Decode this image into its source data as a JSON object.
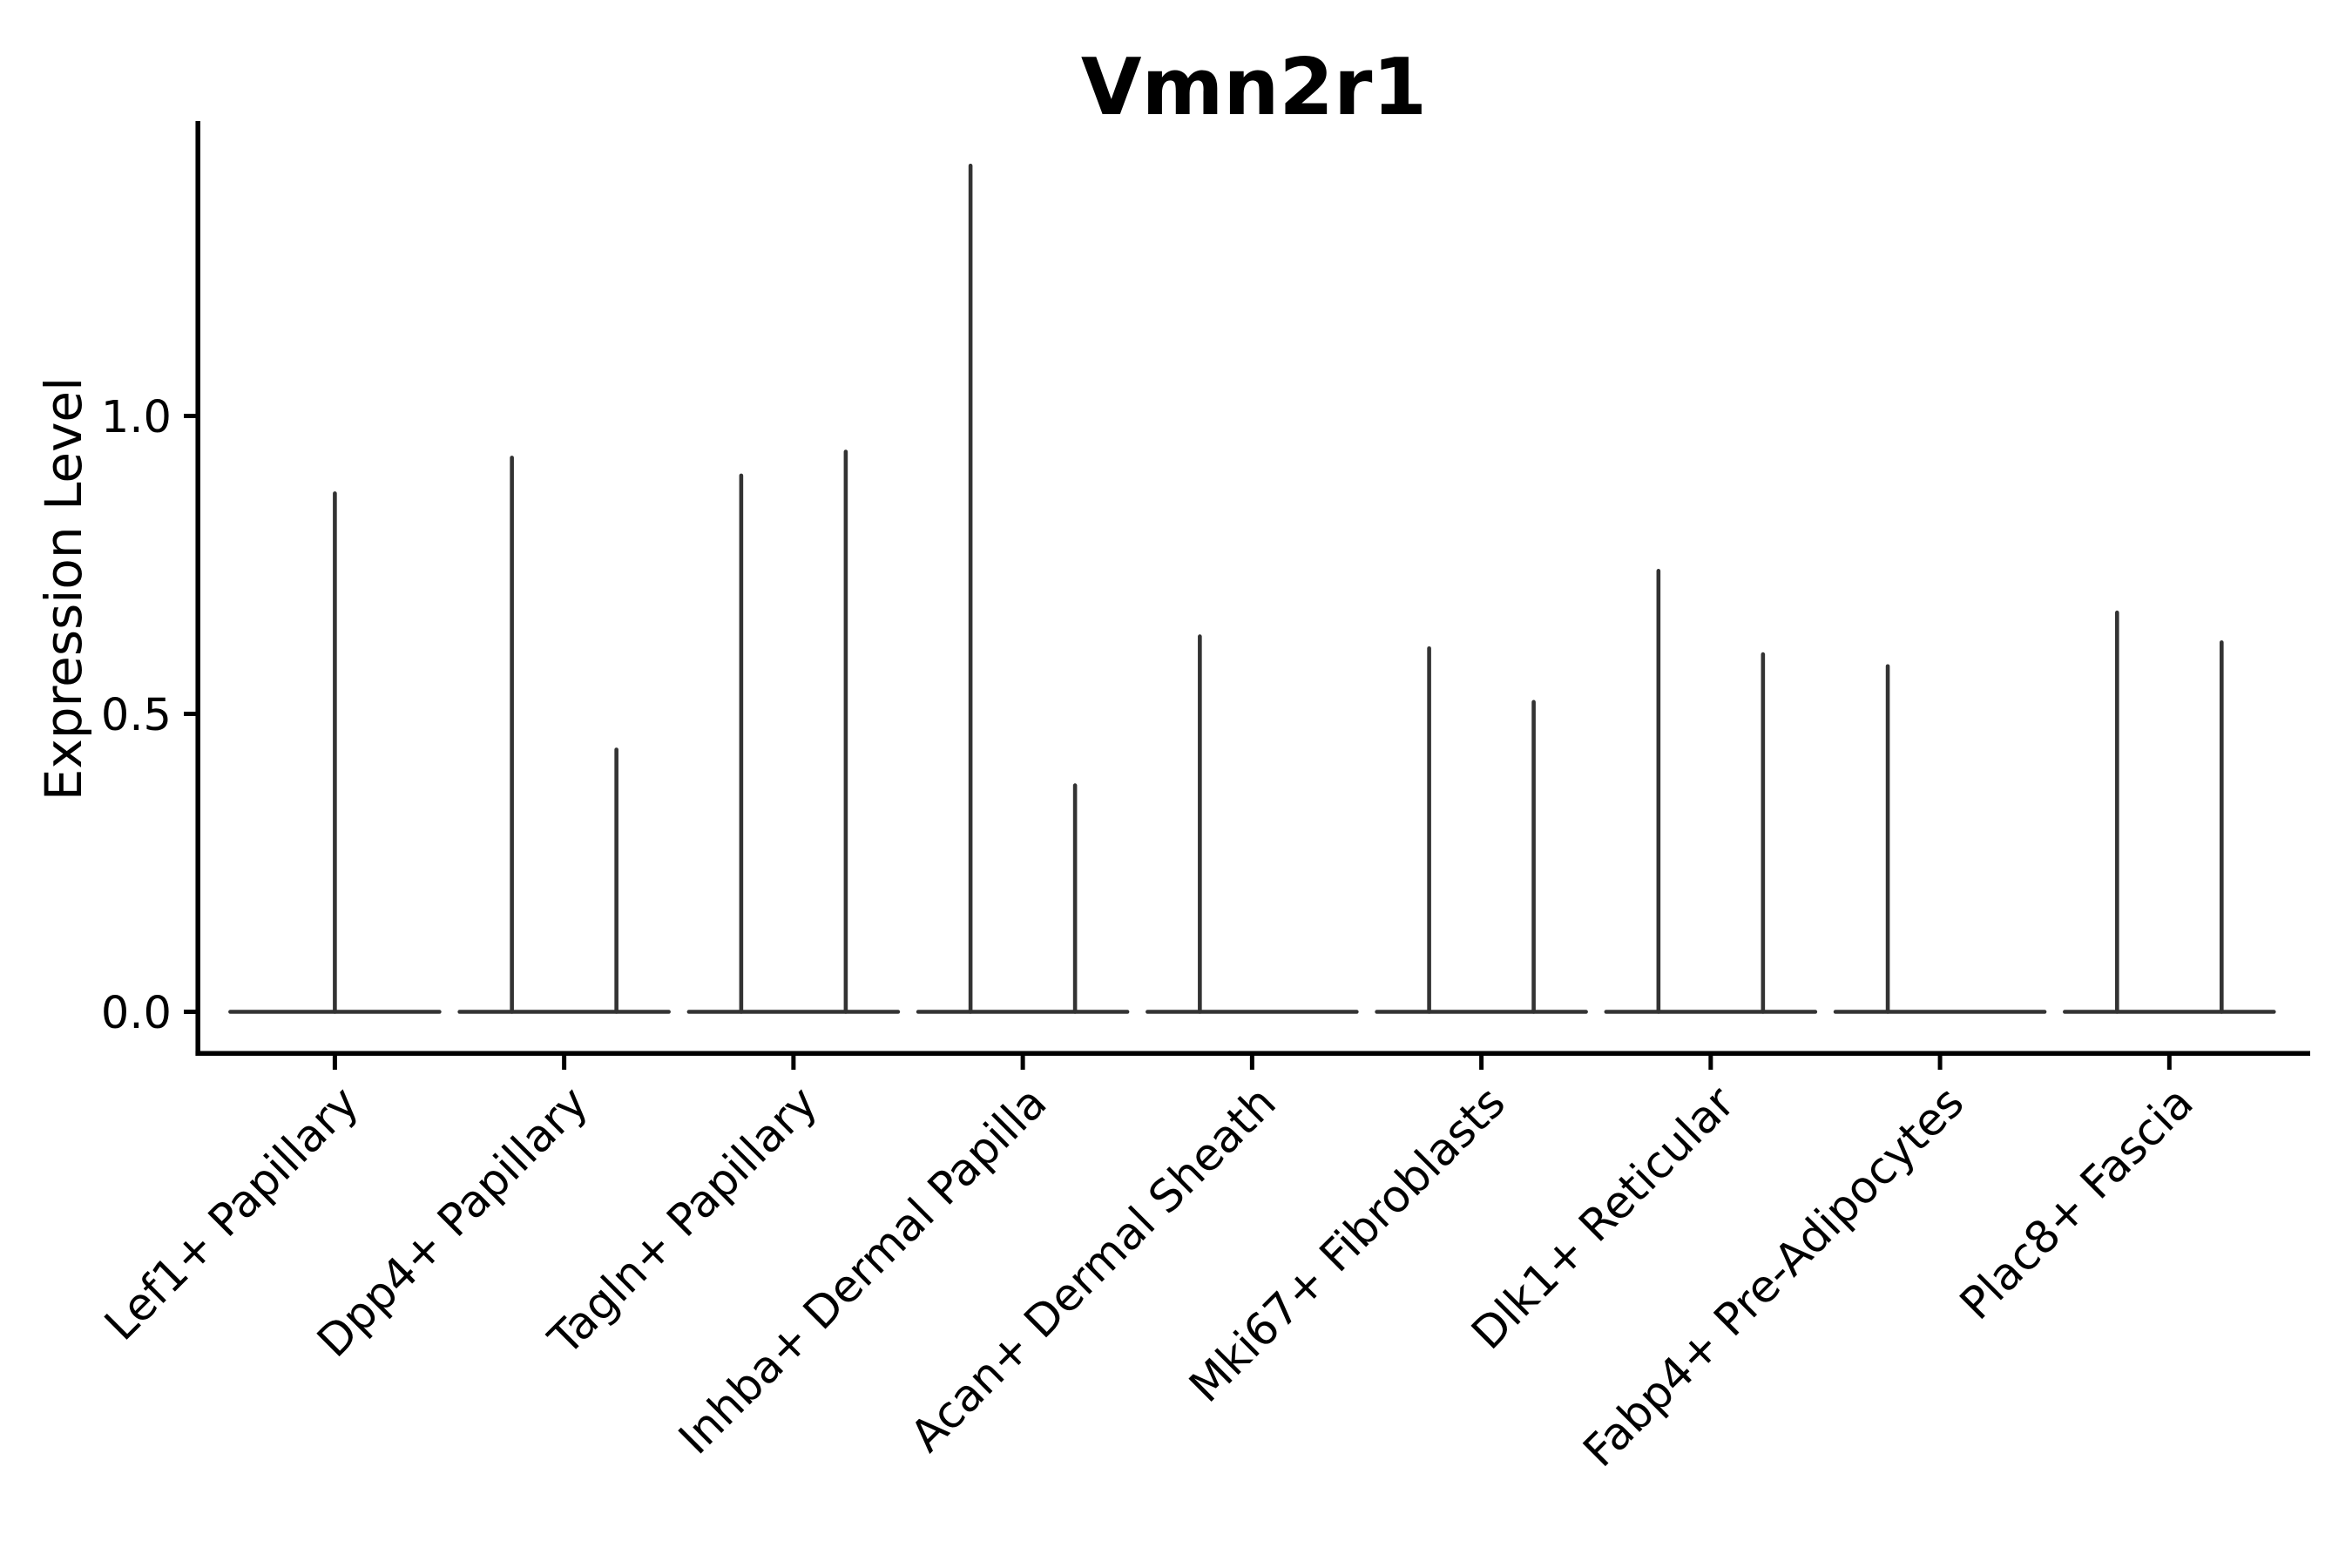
{
  "figure": {
    "background": "#ffffff"
  },
  "chart_data": {
    "type": "violin",
    "title": "Vmn2r1",
    "xlabel": "",
    "ylabel": "Expression Level",
    "grid": false,
    "legend": false,
    "ylim": [
      -0.07,
      1.5
    ],
    "yticks": [
      0.0,
      0.5,
      1.0
    ],
    "ytick_labels": [
      "0.0",
      "0.5",
      "1.0"
    ],
    "x_tick_rotation_deg": 45,
    "categories": [
      "Lef1+ Papillary",
      "Dpp4+ Papillary",
      "Tagln+ Papillary",
      "Inhba+ Dermal Papilla",
      "Acan+ Dermal Sheath",
      "Mki67+ Fibroblasts",
      "Dlk1+ Reticular",
      "Fabp4+ Pre-Adipocytes",
      "Plac8+ Fascia"
    ],
    "groups": [
      {
        "label": "Lef1+ Papillary",
        "baseline_value": 0.0,
        "spikes": [
          {
            "pos": "center",
            "value": 0.87
          }
        ]
      },
      {
        "label": "Dpp4+ Papillary",
        "baseline_value": 0.0,
        "spikes": [
          {
            "pos": "left",
            "value": 0.93
          },
          {
            "pos": "right",
            "value": 0.44
          }
        ]
      },
      {
        "label": "Tagln+ Papillary",
        "baseline_value": 0.0,
        "spikes": [
          {
            "pos": "left",
            "value": 0.9
          },
          {
            "pos": "right",
            "value": 0.94
          }
        ]
      },
      {
        "label": "Inhba+ Dermal Papilla",
        "baseline_value": 0.0,
        "spikes": [
          {
            "pos": "left",
            "value": 1.42
          },
          {
            "pos": "right",
            "value": 0.38
          }
        ]
      },
      {
        "label": "Acan+ Dermal Sheath",
        "baseline_value": 0.0,
        "spikes": [
          {
            "pos": "left",
            "value": 0.63
          }
        ]
      },
      {
        "label": "Mki67+ Fibroblasts",
        "baseline_value": 0.0,
        "spikes": [
          {
            "pos": "left",
            "value": 0.61
          },
          {
            "pos": "right",
            "value": 0.52
          }
        ]
      },
      {
        "label": "Dlk1+ Reticular",
        "baseline_value": 0.0,
        "spikes": [
          {
            "pos": "left",
            "value": 0.74
          },
          {
            "pos": "right",
            "value": 0.6
          }
        ]
      },
      {
        "label": "Fabp4+ Pre-Adipocytes",
        "baseline_value": 0.0,
        "spikes": [
          {
            "pos": "left",
            "value": 0.58
          }
        ]
      },
      {
        "label": "Plac8+ Fascia",
        "baseline_value": 0.0,
        "spikes": [
          {
            "pos": "left",
            "value": 0.67
          },
          {
            "pos": "right",
            "value": 0.62
          }
        ]
      }
    ],
    "colors": {
      "violin": "#333333",
      "axis": "#000000",
      "text": "#000000",
      "background": "#ffffff"
    }
  }
}
